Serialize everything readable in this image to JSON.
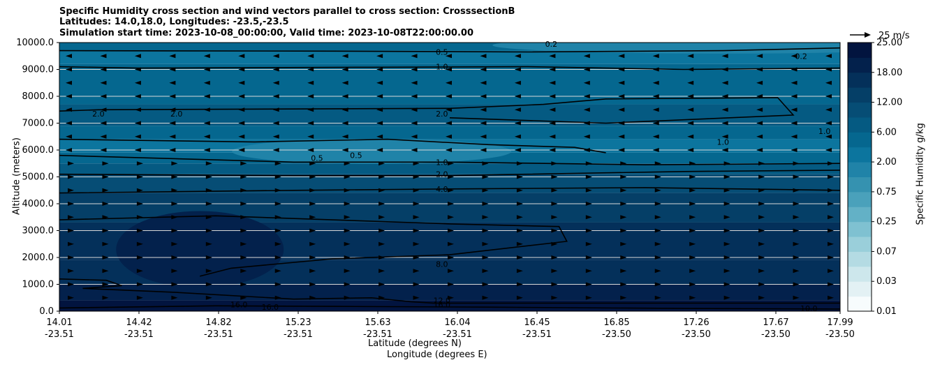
{
  "titles": [
    "Specific Humidity cross section and wind vectors parallel to cross section: CrosssectionB",
    "Latitudes: 14.0,18.0, Longitudes: -23.5,-23.5",
    "Simulation start time: 2023-10-08_00:00:00, Valid time: 2023-10-08T22:00:00.00"
  ],
  "axes": {
    "ylabel": "Altitude (meters)",
    "xlabel_line1": "Latitude (degrees N)",
    "xlabel_line2": "Longitude (degrees E)",
    "colorbar_label": "Specific Humidity g/kg",
    "quiver_key_label": "25 m/s"
  },
  "colors": {
    "cmap": [
      "#f7fcfd",
      "#e3f1f4",
      "#cde7ec",
      "#b4dbe3",
      "#9acfda",
      "#7fc1d1",
      "#63b1c6",
      "#4aa1bb",
      "#3592b0",
      "#2083a8",
      "#0c759e",
      "#05678f",
      "#055a82",
      "#064d75",
      "#053f67",
      "#04305a",
      "#03214c",
      "#02143f"
    ]
  },
  "chart_data": {
    "type": "heatmap",
    "title": "Specific Humidity cross section and wind vectors parallel to cross section: CrosssectionB",
    "x_tick_labels_lat": [
      "14.01",
      "14.42",
      "14.82",
      "15.23",
      "15.63",
      "16.04",
      "16.45",
      "16.85",
      "17.26",
      "17.67",
      "17.99"
    ],
    "x_tick_labels_lon": [
      "-23.51",
      "-23.51",
      "-23.51",
      "-23.51",
      "-23.51",
      "-23.51",
      "-23.51",
      "-23.50",
      "-23.50",
      "-23.50",
      "-23.50"
    ],
    "y_ticks": [
      0,
      1000,
      2000,
      3000,
      4000,
      5000,
      6000,
      7000,
      8000,
      9000,
      10000
    ],
    "y_tick_labels": [
      "0.0",
      "1000.0",
      "2000.0",
      "3000.0",
      "4000.0",
      "5000.0",
      "6000.0",
      "7000.0",
      "8000.0",
      "9000.0",
      "10000.0"
    ],
    "ylim": [
      0,
      10000
    ],
    "colorbar_ticks": [
      "0.01",
      "0.03",
      "0.07",
      "0.25",
      "0.75",
      "2.00",
      "6.00",
      "12.00",
      "18.00",
      "25.00"
    ],
    "grid": "horizontal",
    "contour_labels": [
      {
        "text": "0.2",
        "x": 0.63,
        "y": 9950
      },
      {
        "text": "0.5",
        "x": 0.49,
        "y": 9650
      },
      {
        "text": "0.2",
        "x": 0.95,
        "y": 9500
      },
      {
        "text": "1.0",
        "x": 0.49,
        "y": 9100
      },
      {
        "text": "2.0",
        "x": 0.05,
        "y": 7350
      },
      {
        "text": "2.0",
        "x": 0.15,
        "y": 7350
      },
      {
        "text": "2.0",
        "x": 0.49,
        "y": 7350
      },
      {
        "text": "1.0",
        "x": 0.98,
        "y": 6700
      },
      {
        "text": "1.0",
        "x": 0.85,
        "y": 6300
      },
      {
        "text": "0.5",
        "x": 0.33,
        "y": 5700
      },
      {
        "text": "0.5",
        "x": 0.38,
        "y": 5800
      },
      {
        "text": "1.0",
        "x": 0.49,
        "y": 5550
      },
      {
        "text": "2.0",
        "x": 0.49,
        "y": 5100
      },
      {
        "text": "4.0",
        "x": 0.49,
        "y": 4550
      },
      {
        "text": "8.0",
        "x": 0.49,
        "y": 1750
      },
      {
        "text": "12.0",
        "x": 0.49,
        "y": 400
      },
      {
        "text": "16.0",
        "x": 0.49,
        "y": 250
      },
      {
        "text": "16.0",
        "x": 0.23,
        "y": 250
      },
      {
        "text": "16.0",
        "x": 0.27,
        "y": 150
      },
      {
        "text": "10.0",
        "x": 0.96,
        "y": 100
      }
    ],
    "wind_direction_by_level": [
      {
        "y": 9500,
        "dir": "left"
      },
      {
        "y": 9000,
        "dir": "left"
      },
      {
        "y": 8500,
        "dir": "left"
      },
      {
        "y": 8000,
        "dir": "left"
      },
      {
        "y": 7500,
        "dir": "left"
      },
      {
        "y": 7000,
        "dir": "left"
      },
      {
        "y": 6500,
        "dir": "left"
      },
      {
        "y": 6000,
        "dir": "left"
      },
      {
        "y": 5500,
        "dir": "right"
      },
      {
        "y": 5000,
        "dir": "right"
      },
      {
        "y": 4500,
        "dir": "right"
      },
      {
        "y": 4000,
        "dir": "right"
      },
      {
        "y": 3500,
        "dir": "right"
      },
      {
        "y": 3000,
        "dir": "right"
      },
      {
        "y": 2500,
        "dir": "right"
      },
      {
        "y": 2000,
        "dir": "right"
      },
      {
        "y": 1500,
        "dir": "right"
      },
      {
        "y": 1000,
        "dir": "right"
      },
      {
        "y": 500,
        "dir": "right"
      }
    ]
  }
}
